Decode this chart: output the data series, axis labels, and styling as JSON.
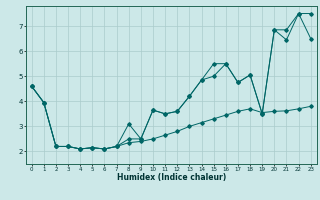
{
  "xlabel": "Humidex (Indice chaleur)",
  "bg_color": "#cce8e8",
  "grid_color": "#aacccc",
  "line_color": "#006666",
  "xlim": [
    -0.5,
    23.5
  ],
  "ylim": [
    1.5,
    7.8
  ],
  "yticks": [
    2,
    3,
    4,
    5,
    6,
    7
  ],
  "xticks": [
    0,
    1,
    2,
    3,
    4,
    5,
    6,
    7,
    8,
    9,
    10,
    11,
    12,
    13,
    14,
    15,
    16,
    17,
    18,
    19,
    20,
    21,
    22,
    23
  ],
  "line1_x": [
    0,
    1,
    2,
    3,
    4,
    5,
    6,
    7,
    8,
    9,
    10,
    11,
    12,
    13,
    14,
    15,
    16,
    17,
    18,
    19,
    20,
    21,
    22,
    23
  ],
  "line1_y": [
    4.6,
    3.95,
    2.2,
    2.2,
    2.1,
    2.15,
    2.1,
    2.2,
    3.1,
    2.5,
    3.65,
    3.5,
    3.6,
    4.2,
    4.85,
    5.0,
    5.5,
    4.75,
    5.05,
    3.5,
    6.85,
    6.45,
    7.5,
    6.5
  ],
  "line2_x": [
    0,
    1,
    2,
    3,
    4,
    5,
    6,
    7,
    8,
    9,
    10,
    11,
    12,
    13,
    14,
    15,
    16,
    17,
    18,
    19,
    20,
    21,
    22,
    23
  ],
  "line2_y": [
    4.6,
    3.95,
    2.2,
    2.2,
    2.1,
    2.15,
    2.1,
    2.2,
    2.35,
    2.4,
    2.5,
    2.65,
    2.8,
    3.0,
    3.15,
    3.3,
    3.45,
    3.6,
    3.7,
    3.55,
    3.6,
    3.62,
    3.7,
    3.8
  ],
  "line3_x": [
    0,
    1,
    2,
    3,
    4,
    5,
    6,
    7,
    8,
    9,
    10,
    11,
    12,
    13,
    14,
    15,
    16,
    17,
    18,
    19,
    20,
    21,
    22,
    23
  ],
  "line3_y": [
    4.6,
    3.95,
    2.2,
    2.2,
    2.1,
    2.15,
    2.1,
    2.2,
    2.5,
    2.5,
    3.65,
    3.5,
    3.6,
    4.2,
    4.85,
    5.5,
    5.5,
    4.75,
    5.05,
    3.5,
    6.85,
    6.85,
    7.5,
    7.5
  ]
}
